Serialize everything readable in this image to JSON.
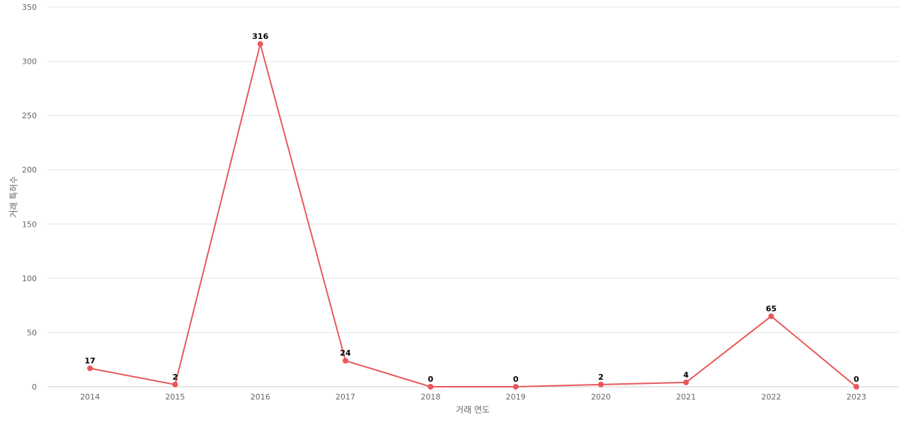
{
  "chart_data": {
    "type": "line",
    "x_label": "거래 연도",
    "y_label": "거래 특허수",
    "categories": [
      "2014",
      "2015",
      "2016",
      "2017",
      "2018",
      "2019",
      "2020",
      "2021",
      "2022",
      "2023"
    ],
    "values": [
      17,
      2,
      316,
      24,
      0,
      0,
      2,
      4,
      65,
      0
    ],
    "color": "#e8585a",
    "ylim": [
      0,
      350
    ],
    "yticks": [
      0,
      50,
      100,
      150,
      200,
      250,
      300,
      350
    ],
    "grid": true
  }
}
